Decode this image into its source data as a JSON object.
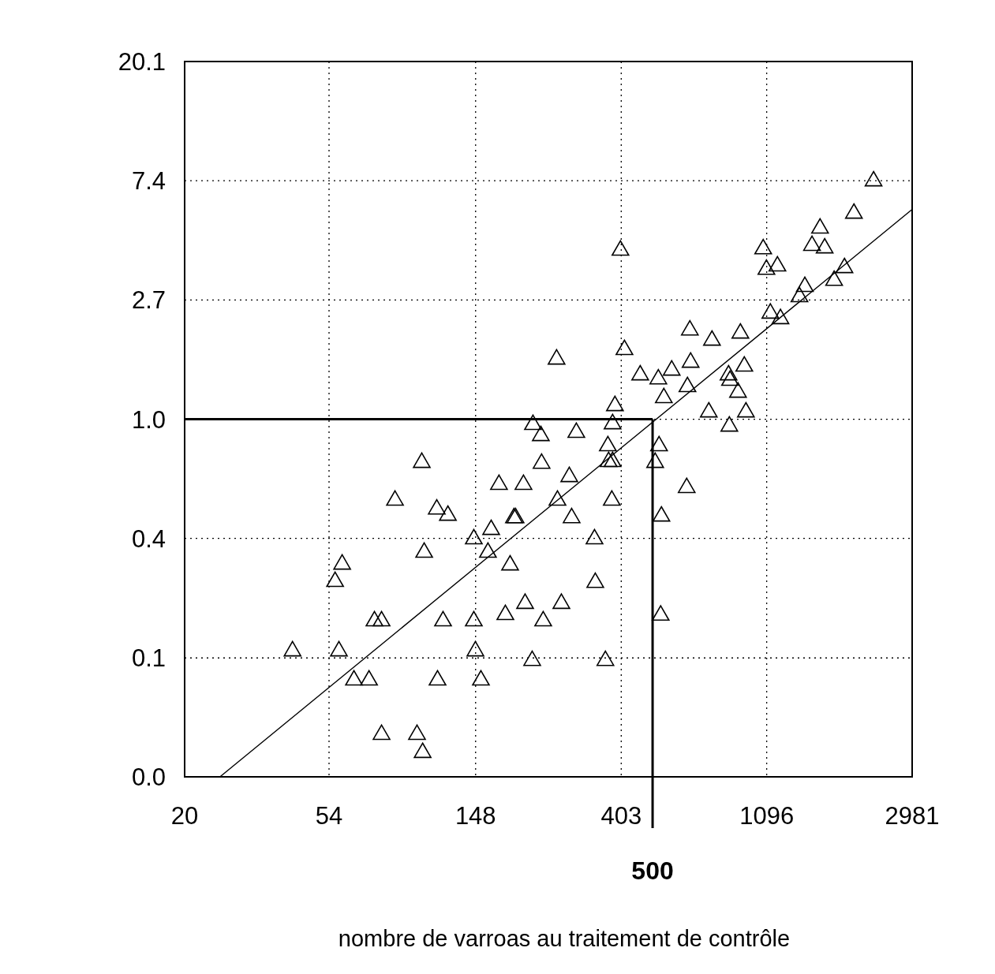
{
  "chart_data": {
    "type": "scatter",
    "xlabel": "nombre de varroas au traitement de contrôle",
    "log": "xy",
    "grid": true,
    "xlim": [
      20,
      2981
    ],
    "xticks": [
      20,
      54,
      148,
      403,
      1096,
      2981
    ],
    "ylim": [
      0.0498,
      20.09
    ],
    "yticks": [
      {
        "value": 0.0498,
        "label": "0.0"
      },
      {
        "value": 0.135,
        "label": "0.1"
      },
      {
        "value": 0.368,
        "label": "0.4"
      },
      {
        "value": 1,
        "label": "1.0"
      },
      {
        "value": 2.718,
        "label": "2.7"
      },
      {
        "value": 7.389,
        "label": "7.4"
      },
      {
        "value": 20.09,
        "label": "20.1"
      }
    ],
    "ref_lines": [
      {
        "axis": "y",
        "value": 1
      },
      {
        "axis": "x",
        "value": 500,
        "label": "500"
      }
    ],
    "series": [
      {
        "marker": "triangle",
        "color": "#000000",
        "x": [
          42.0,
          56.3,
          59.1,
          57.8,
          64.1,
          71.1,
          73.8,
          77.5,
          77.5,
          85.0,
          98.9,
          102.8,
          102.2,
          103.9,
          113.3,
          122.3,
          118.3,
          113.9,
          146.2,
          146.2,
          147.8,
          153.5,
          164.7,
          161.1,
          173.8,
          181.6,
          187.6,
          192.7,
          194.8,
          205.7,
          208.0,
          219.6,
          218.4,
          231.8,
          233.0,
          235.6,
          259.9,
          258.3,
          267.0,
          281.9,
          286.5,
          295.9,
          335.3,
          337.1,
          361.4,
          367.6,
          369.5,
          377.7,
          379.7,
          385.9,
          379.7,
          400.8,
          412.0,
          459.1,
          508.9,
          520.1,
          522.7,
          528.6,
          531.2,
          540.2,
          570.2,
          632.2,
          635.5,
          646.1,
          649.5,
          752.2,
          735.9,
          847.6,
          843.0,
          851.8,
          899.8,
          914.5,
          939.6,
          950.0,
          1070,
          1094,
          1124,
          1180,
          1205,
          1373,
          1425,
          1497,
          1582,
          1633,
          1743,
          1871,
          1997,
          2286
        ],
        "values": [
          0.143,
          0.256,
          0.296,
          0.143,
          0.112,
          0.112,
          0.184,
          0.184,
          0.071,
          0.506,
          0.071,
          0.061,
          0.695,
          0.327,
          0.47,
          0.446,
          0.184,
          0.112,
          0.366,
          0.184,
          0.143,
          0.112,
          0.396,
          0.327,
          0.578,
          0.194,
          0.294,
          0.437,
          0.437,
          0.578,
          0.213,
          0.955,
          0.132,
          0.87,
          0.69,
          0.184,
          0.506,
          1.653,
          0.213,
          0.617,
          0.437,
          0.894,
          0.366,
          0.254,
          0.132,
          0.799,
          0.7,
          0.506,
          0.961,
          1.119,
          0.7,
          4.12,
          1.79,
          1.448,
          0.695,
          1.4,
          0.799,
          0.193,
          0.443,
          1.196,
          1.507,
          0.563,
          1.312,
          2.11,
          1.61,
          1.937,
          1.061,
          0.942,
          1.448,
          1.383,
          1.252,
          2.056,
          1.558,
          1.061,
          4.17,
          3.51,
          2.43,
          3.61,
          2.32,
          2.79,
          3.04,
          4.29,
          4.96,
          4.2,
          3.2,
          3.56,
          5.62,
          7.37
        ]
      },
      {
        "type": "line",
        "color": "#000000",
        "x": [
          25.5,
          2981
        ],
        "values": [
          0.0498,
          5.81
        ]
      }
    ]
  }
}
